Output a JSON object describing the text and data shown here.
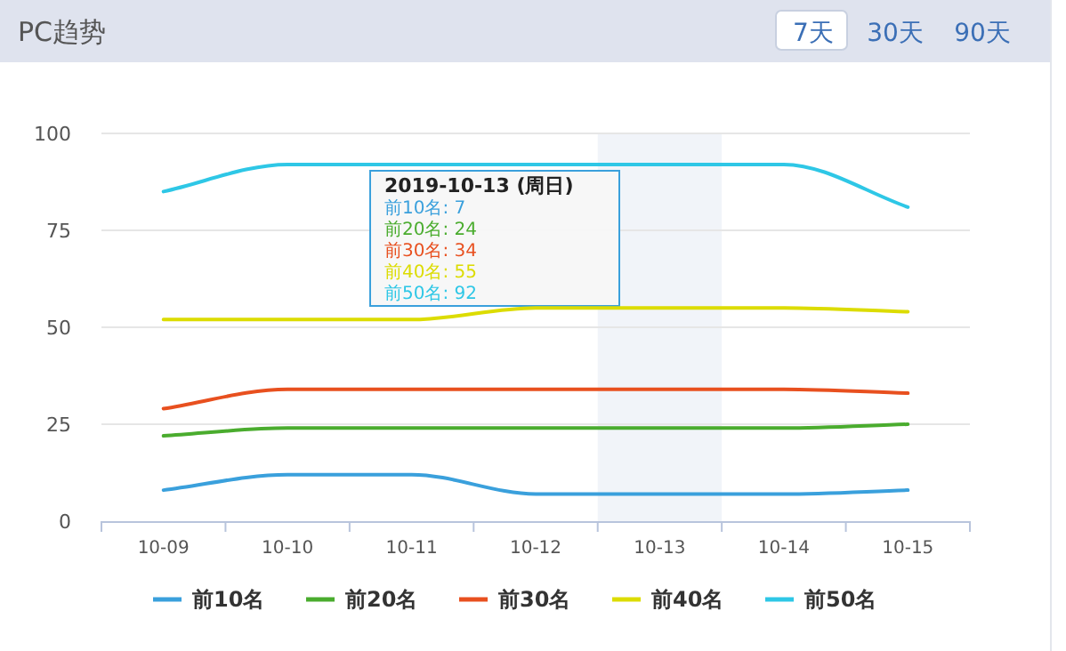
{
  "chart_data": {
    "type": "line",
    "title": "PC趋势",
    "categories": [
      "10-09",
      "10-10",
      "10-11",
      "10-12",
      "10-13",
      "10-14",
      "10-15"
    ],
    "series": [
      {
        "name": "前10名",
        "color": "#3aa0dc",
        "values": [
          8,
          12,
          12,
          7,
          7,
          7,
          8
        ]
      },
      {
        "name": "前20名",
        "color": "#4aac2e",
        "values": [
          22,
          24,
          24,
          24,
          24,
          24,
          25
        ]
      },
      {
        "name": "前30名",
        "color": "#e8501f",
        "values": [
          29,
          34,
          34,
          34,
          34,
          34,
          33
        ]
      },
      {
        "name": "前40名",
        "color": "#dcdc00",
        "values": [
          52,
          52,
          52,
          55,
          55,
          55,
          54
        ]
      },
      {
        "name": "前50名",
        "color": "#2ec7e6",
        "values": [
          85,
          92,
          92,
          92,
          92,
          92,
          81
        ]
      }
    ],
    "ylim": [
      0,
      100
    ],
    "yticks": [
      0,
      25,
      50,
      75,
      100
    ],
    "grid": "y",
    "legend": "bottom",
    "bands": [
      {
        "axis": "x",
        "from": "10-13",
        "to": "10-13",
        "color": "#f1f4f9"
      }
    ],
    "annotations": [
      "7天",
      "30天",
      "90天",
      "2019-10-13 (周日)",
      "前10名: 7",
      "前20名: 24",
      "前30名: 34",
      "前40名: 55",
      "前50名: 92"
    ]
  }
}
